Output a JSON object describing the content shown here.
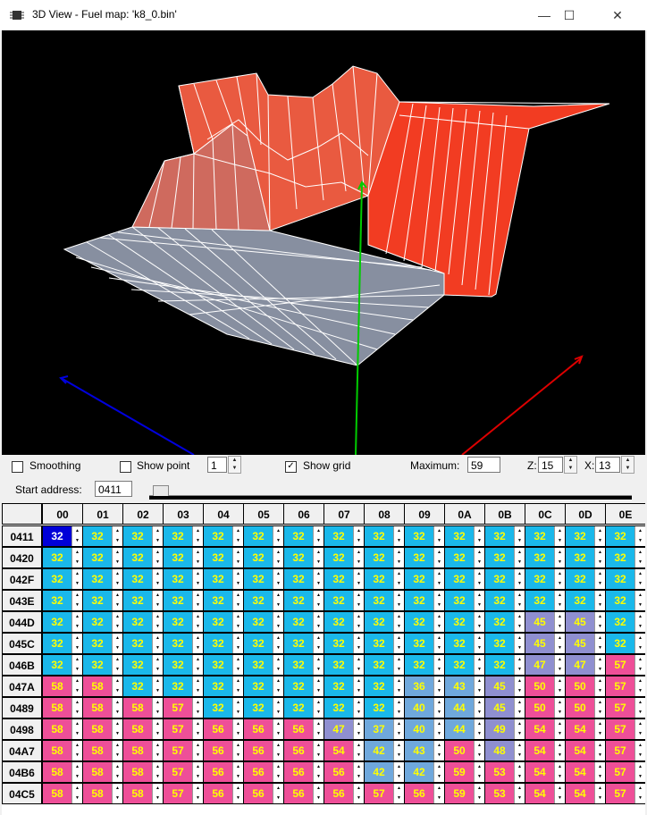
{
  "window": {
    "title": "3D View - Fuel map: 'k8_0.bin'",
    "minimize": "—",
    "maximize": "☐",
    "close": "✕"
  },
  "controls": {
    "smoothing_label": "Smoothing",
    "smoothing_checked": "",
    "show_point_label": "Show point",
    "show_point_checked": "",
    "show_point_value": "1",
    "show_grid_label": "Show grid",
    "show_grid_checked": "✓",
    "maximum_label": "Maximum:",
    "maximum_value": "59",
    "z_label": "Z:",
    "z_value": "15",
    "x_label": "X:",
    "x_value": "13",
    "start_address_label": "Start address:",
    "start_address_value": "0411",
    "slider_position": 0.0
  },
  "colors": {
    "low": "#1ab8ea",
    "mid": "#8f8fd0",
    "high": "#ee4f98",
    "selected": "#0000d8",
    "surface": "#f23c22",
    "floor": "#878fa0"
  },
  "table": {
    "columns": [
      "00",
      "01",
      "02",
      "03",
      "04",
      "05",
      "06",
      "07",
      "08",
      "09",
      "0A",
      "0B",
      "0C",
      "0D",
      "0E"
    ],
    "rows": [
      {
        "addr": "0411",
        "values": [
          32,
          32,
          32,
          32,
          32,
          32,
          32,
          32,
          32,
          32,
          32,
          32,
          32,
          32,
          32
        ]
      },
      {
        "addr": "0420",
        "values": [
          32,
          32,
          32,
          32,
          32,
          32,
          32,
          32,
          32,
          32,
          32,
          32,
          32,
          32,
          32
        ]
      },
      {
        "addr": "042F",
        "values": [
          32,
          32,
          32,
          32,
          32,
          32,
          32,
          32,
          32,
          32,
          32,
          32,
          32,
          32,
          32
        ]
      },
      {
        "addr": "043E",
        "values": [
          32,
          32,
          32,
          32,
          32,
          32,
          32,
          32,
          32,
          32,
          32,
          32,
          32,
          32,
          32
        ]
      },
      {
        "addr": "044D",
        "values": [
          32,
          32,
          32,
          32,
          32,
          32,
          32,
          32,
          32,
          32,
          32,
          32,
          45,
          45,
          32
        ]
      },
      {
        "addr": "045C",
        "values": [
          32,
          32,
          32,
          32,
          32,
          32,
          32,
          32,
          32,
          32,
          32,
          32,
          45,
          45,
          32
        ]
      },
      {
        "addr": "046B",
        "values": [
          32,
          32,
          32,
          32,
          32,
          32,
          32,
          32,
          32,
          32,
          32,
          32,
          47,
          47,
          57
        ]
      },
      {
        "addr": "047A",
        "values": [
          58,
          58,
          32,
          32,
          32,
          32,
          32,
          32,
          32,
          36,
          43,
          45,
          50,
          50,
          57
        ]
      },
      {
        "addr": "0489",
        "values": [
          58,
          58,
          58,
          57,
          32,
          32,
          32,
          32,
          32,
          40,
          44,
          45,
          50,
          50,
          57
        ]
      },
      {
        "addr": "0498",
        "values": [
          58,
          58,
          58,
          57,
          56,
          56,
          56,
          47,
          37,
          40,
          44,
          49,
          54,
          54,
          57
        ]
      },
      {
        "addr": "04A7",
        "values": [
          58,
          58,
          58,
          57,
          56,
          56,
          56,
          54,
          42,
          43,
          50,
          48,
          54,
          54,
          57
        ]
      },
      {
        "addr": "04B6",
        "values": [
          58,
          58,
          58,
          57,
          56,
          56,
          56,
          56,
          42,
          42,
          59,
          53,
          54,
          54,
          57
        ]
      },
      {
        "addr": "04C5",
        "values": [
          58,
          58,
          58,
          57,
          56,
          56,
          56,
          56,
          57,
          56,
          59,
          53,
          54,
          54,
          57
        ]
      }
    ]
  }
}
